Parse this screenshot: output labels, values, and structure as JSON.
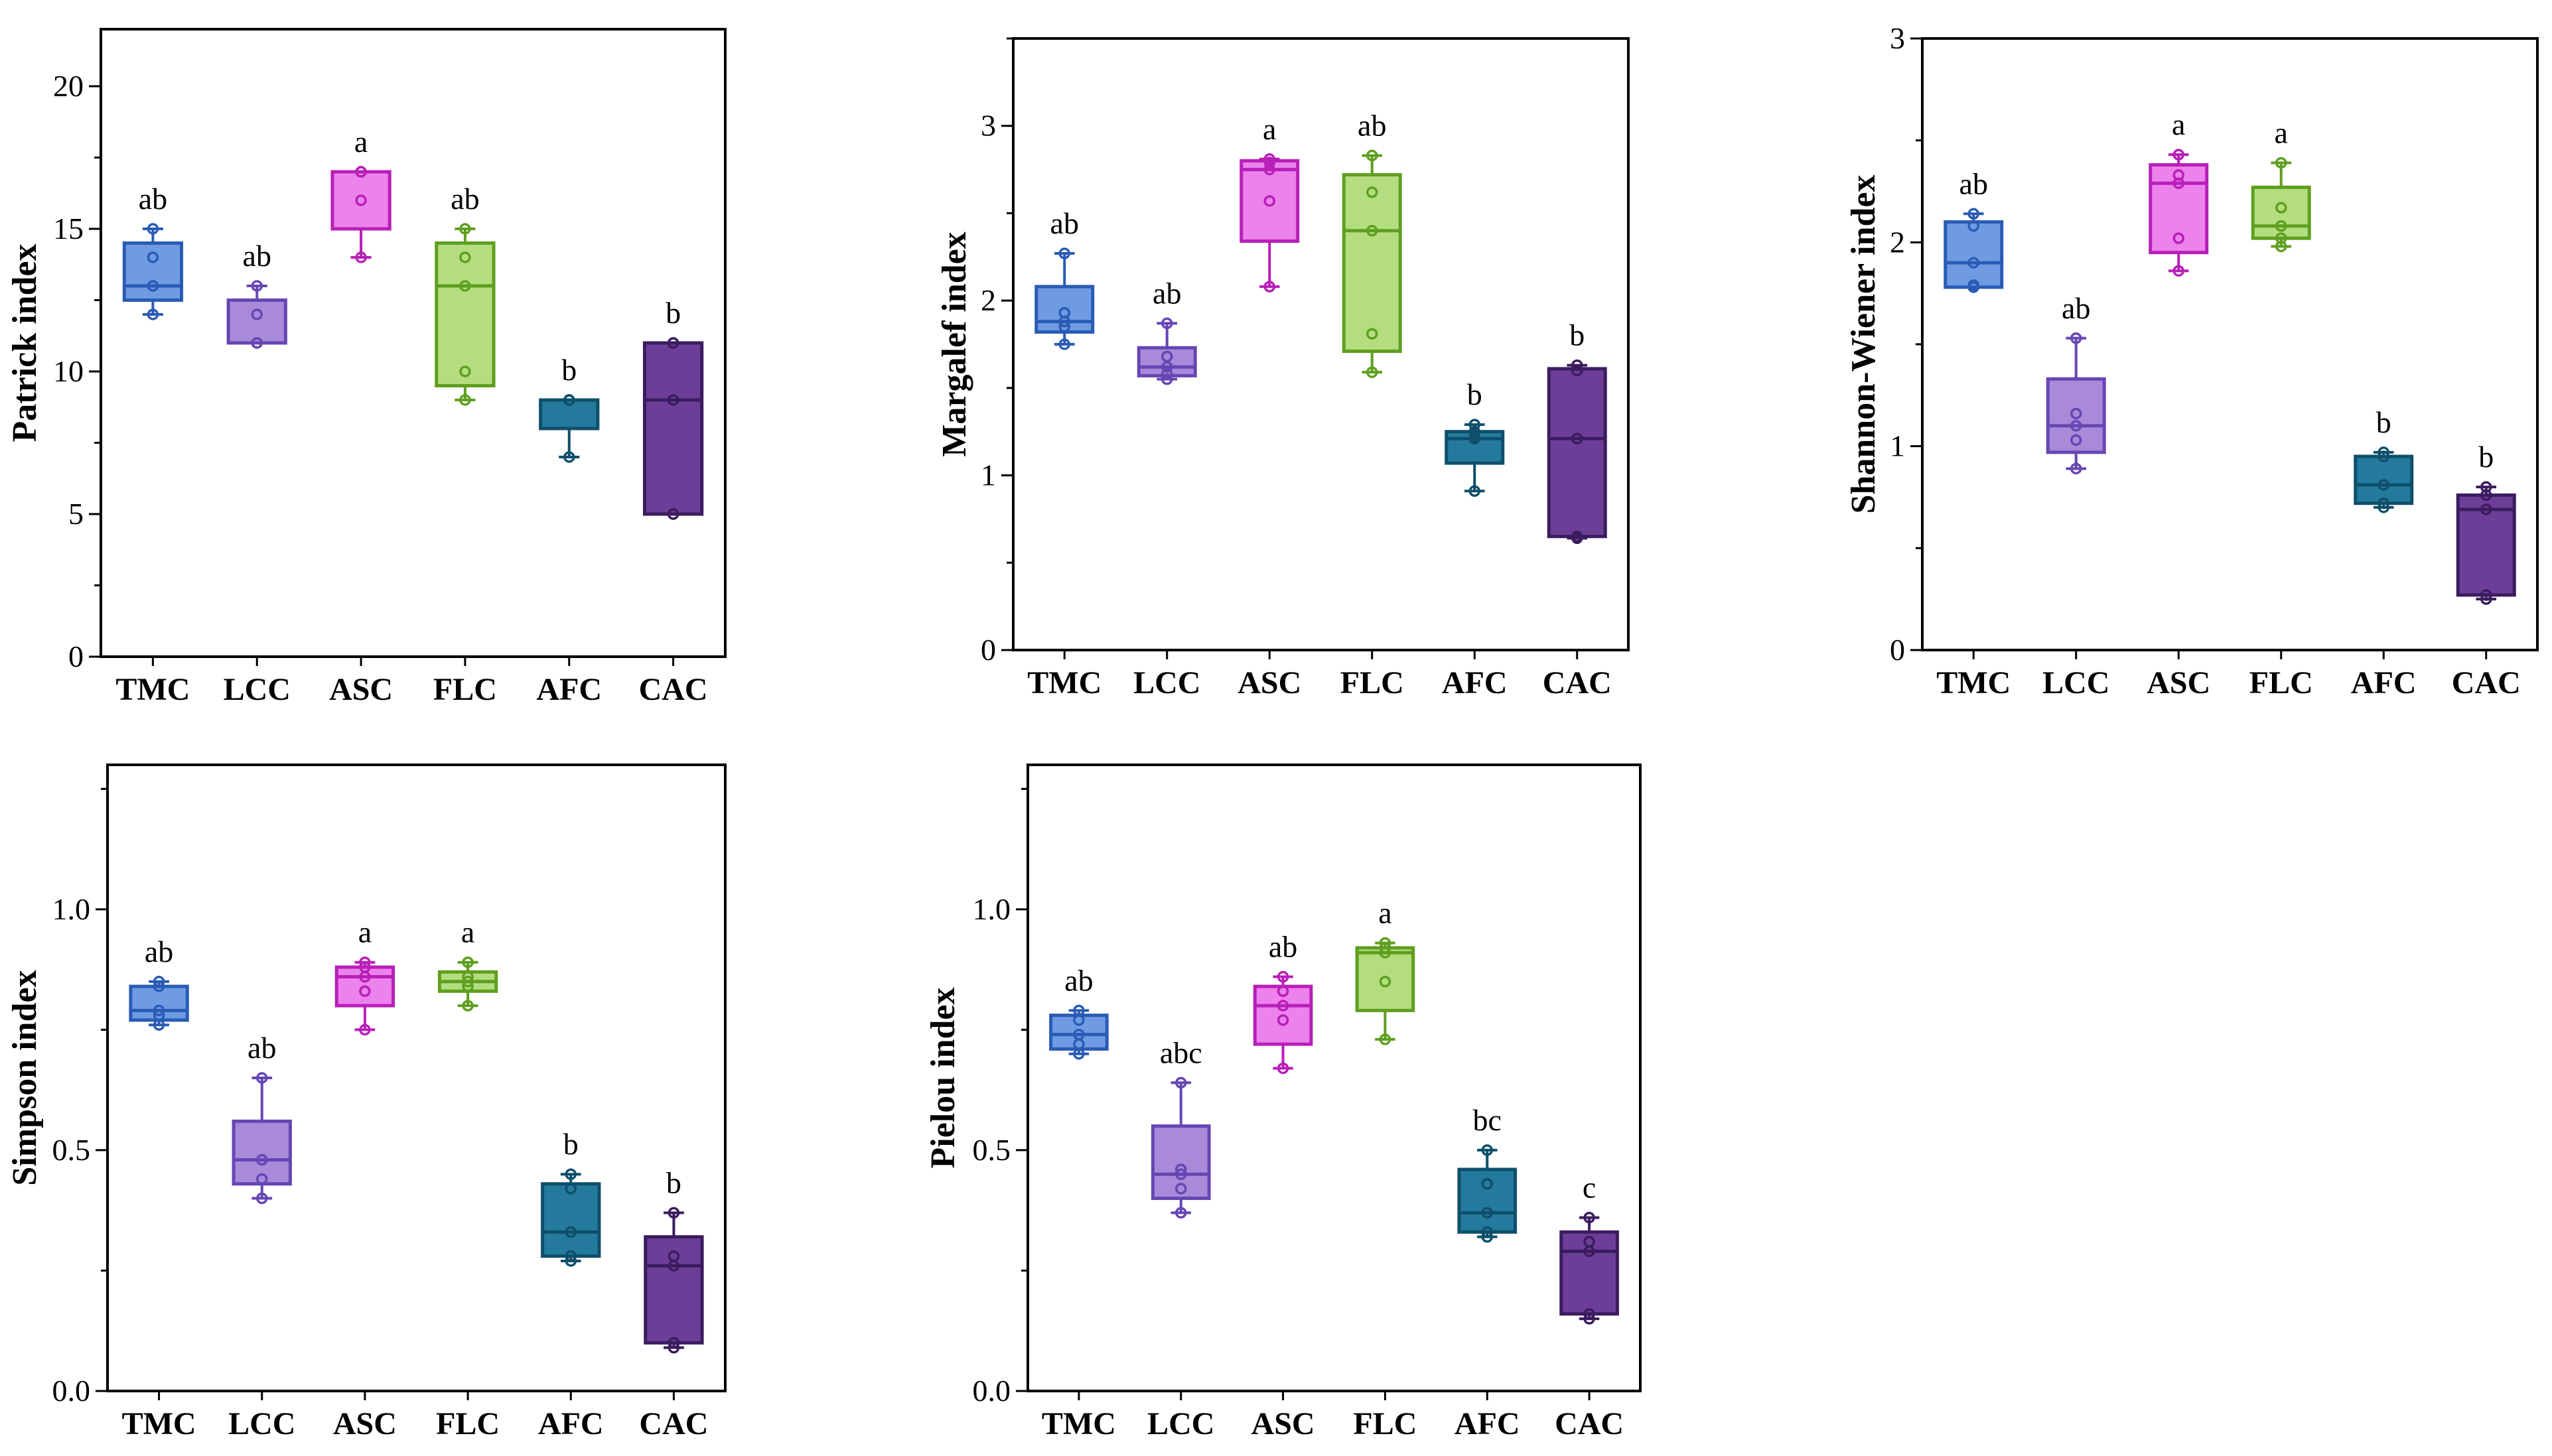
{
  "chart_data": [
    {
      "type": "box",
      "ylabel": "Patrick index",
      "ylim": [
        0,
        22
      ],
      "yticks": [
        0,
        5,
        10,
        15,
        20
      ],
      "categories": [
        "TMC",
        "LCC",
        "ASC",
        "FLC",
        "AFC",
        "CAC"
      ],
      "boxes": [
        {
          "min": 12,
          "q1": 12.5,
          "median": 13,
          "q3": 14.5,
          "max": 15,
          "points": [
            12,
            13,
            13,
            14,
            15
          ],
          "label": "ab"
        },
        {
          "min": 11,
          "q1": 11,
          "median": 11,
          "q3": 12.5,
          "max": 13,
          "points": [
            11,
            11,
            11,
            12,
            13
          ],
          "label": "ab"
        },
        {
          "min": 14,
          "q1": 15,
          "median": 17,
          "q3": 17,
          "max": 17,
          "points": [
            14,
            16,
            17,
            17,
            17
          ],
          "label": "a"
        },
        {
          "min": 9,
          "q1": 9.5,
          "median": 13,
          "q3": 14.5,
          "max": 15,
          "points": [
            9,
            10,
            13,
            14,
            15
          ],
          "label": "ab"
        },
        {
          "min": 7,
          "q1": 8,
          "median": 9,
          "q3": 9,
          "max": 9,
          "points": [
            7,
            9,
            9,
            9,
            9
          ],
          "label": "b"
        },
        {
          "min": 5,
          "q1": 5,
          "median": 9,
          "q3": 11,
          "max": 11,
          "points": [
            5,
            5,
            9,
            11,
            11
          ],
          "label": "b"
        }
      ]
    },
    {
      "type": "box",
      "ylabel": "Margalef index",
      "ylim": [
        0,
        3.5
      ],
      "yticks": [
        0,
        1,
        2,
        3
      ],
      "categories": [
        "TMC",
        "LCC",
        "ASC",
        "FLC",
        "AFC",
        "CAC"
      ],
      "boxes": [
        {
          "min": 1.75,
          "q1": 1.82,
          "median": 1.88,
          "q3": 2.08,
          "max": 2.27,
          "points": [
            1.75,
            1.85,
            1.88,
            1.93,
            2.27
          ],
          "label": "ab"
        },
        {
          "min": 1.55,
          "q1": 1.57,
          "median": 1.62,
          "q3": 1.73,
          "max": 1.87,
          "points": [
            1.55,
            1.58,
            1.62,
            1.68,
            1.87
          ],
          "label": "ab"
        },
        {
          "min": 2.08,
          "q1": 2.34,
          "median": 2.75,
          "q3": 2.8,
          "max": 2.81,
          "points": [
            2.08,
            2.57,
            2.75,
            2.79,
            2.81
          ],
          "label": "a"
        },
        {
          "min": 1.59,
          "q1": 1.71,
          "median": 2.4,
          "q3": 2.72,
          "max": 2.83,
          "points": [
            1.59,
            1.81,
            2.4,
            2.62,
            2.83
          ],
          "label": "ab"
        },
        {
          "min": 0.91,
          "q1": 1.07,
          "median": 1.21,
          "q3": 1.25,
          "max": 1.29,
          "points": [
            0.91,
            1.21,
            1.22,
            1.25,
            1.29
          ],
          "label": "b"
        },
        {
          "min": 0.64,
          "q1": 0.65,
          "median": 1.21,
          "q3": 1.61,
          "max": 1.63,
          "points": [
            0.64,
            0.65,
            1.21,
            1.6,
            1.63
          ],
          "label": "b"
        }
      ]
    },
    {
      "type": "box",
      "ylabel": "Shannon-Wiener index",
      "ylim": [
        0,
        3
      ],
      "yticks": [
        0,
        1,
        2,
        3
      ],
      "categories": [
        "TMC",
        "LCC",
        "ASC",
        "FLC",
        "AFC",
        "CAC"
      ],
      "boxes": [
        {
          "min": 1.78,
          "q1": 1.78,
          "median": 1.9,
          "q3": 2.1,
          "max": 2.14,
          "points": [
            1.78,
            1.79,
            1.9,
            2.08,
            2.14
          ],
          "label": "ab"
        },
        {
          "min": 0.89,
          "q1": 0.97,
          "median": 1.1,
          "q3": 1.33,
          "max": 1.53,
          "points": [
            0.89,
            1.03,
            1.1,
            1.16,
            1.53
          ],
          "label": "ab"
        },
        {
          "min": 1.86,
          "q1": 1.95,
          "median": 2.29,
          "q3": 2.38,
          "max": 2.43,
          "points": [
            1.86,
            2.02,
            2.29,
            2.33,
            2.43
          ],
          "label": "a"
        },
        {
          "min": 1.98,
          "q1": 2.02,
          "median": 2.08,
          "q3": 2.27,
          "max": 2.39,
          "points": [
            1.98,
            2.02,
            2.08,
            2.17,
            2.39
          ],
          "label": "a"
        },
        {
          "min": 0.7,
          "q1": 0.72,
          "median": 0.81,
          "q3": 0.95,
          "max": 0.97,
          "points": [
            0.7,
            0.72,
            0.81,
            0.95,
            0.97
          ],
          "label": "b"
        },
        {
          "min": 0.25,
          "q1": 0.27,
          "median": 0.69,
          "q3": 0.76,
          "max": 0.8,
          "points": [
            0.25,
            0.27,
            0.69,
            0.76,
            0.8
          ],
          "label": "b"
        }
      ]
    },
    {
      "type": "box",
      "ylabel": "Simpson index",
      "ylim": [
        0,
        1.3
      ],
      "yticks": [
        0.0,
        0.5,
        1.0
      ],
      "categories": [
        "TMC",
        "LCC",
        "ASC",
        "FLC",
        "AFC",
        "CAC"
      ],
      "boxes": [
        {
          "min": 0.76,
          "q1": 0.77,
          "median": 0.79,
          "q3": 0.84,
          "max": 0.85,
          "points": [
            0.76,
            0.78,
            0.79,
            0.84,
            0.85
          ],
          "label": "ab"
        },
        {
          "min": 0.4,
          "q1": 0.43,
          "median": 0.48,
          "q3": 0.56,
          "max": 0.65,
          "points": [
            0.4,
            0.44,
            0.48,
            0.48,
            0.65
          ],
          "label": "ab"
        },
        {
          "min": 0.75,
          "q1": 0.8,
          "median": 0.86,
          "q3": 0.88,
          "max": 0.89,
          "points": [
            0.75,
            0.83,
            0.86,
            0.88,
            0.89
          ],
          "label": "a"
        },
        {
          "min": 0.8,
          "q1": 0.83,
          "median": 0.85,
          "q3": 0.87,
          "max": 0.89,
          "points": [
            0.8,
            0.84,
            0.85,
            0.86,
            0.89
          ],
          "label": "a"
        },
        {
          "min": 0.27,
          "q1": 0.28,
          "median": 0.33,
          "q3": 0.43,
          "max": 0.45,
          "points": [
            0.27,
            0.28,
            0.33,
            0.42,
            0.45
          ],
          "label": "b"
        },
        {
          "min": 0.09,
          "q1": 0.1,
          "median": 0.26,
          "q3": 0.32,
          "max": 0.37,
          "points": [
            0.09,
            0.1,
            0.26,
            0.28,
            0.37
          ],
          "label": "b"
        }
      ]
    },
    {
      "type": "box",
      "ylabel": "Pielou index",
      "ylim": [
        0,
        1.3
      ],
      "yticks": [
        0.0,
        0.5,
        1.0
      ],
      "categories": [
        "TMC",
        "LCC",
        "ASC",
        "FLC",
        "AFC",
        "CAC"
      ],
      "boxes": [
        {
          "min": 0.7,
          "q1": 0.71,
          "median": 0.74,
          "q3": 0.78,
          "max": 0.79,
          "points": [
            0.7,
            0.72,
            0.74,
            0.77,
            0.79
          ],
          "label": "ab"
        },
        {
          "min": 0.37,
          "q1": 0.4,
          "median": 0.45,
          "q3": 0.55,
          "max": 0.64,
          "points": [
            0.37,
            0.42,
            0.45,
            0.46,
            0.64
          ],
          "label": "abc"
        },
        {
          "min": 0.67,
          "q1": 0.72,
          "median": 0.8,
          "q3": 0.84,
          "max": 0.86,
          "points": [
            0.67,
            0.77,
            0.8,
            0.83,
            0.86
          ],
          "label": "ab"
        },
        {
          "min": 0.73,
          "q1": 0.79,
          "median": 0.91,
          "q3": 0.92,
          "max": 0.93,
          "points": [
            0.73,
            0.85,
            0.91,
            0.92,
            0.93
          ],
          "label": "a"
        },
        {
          "min": 0.32,
          "q1": 0.33,
          "median": 0.37,
          "q3": 0.46,
          "max": 0.5,
          "points": [
            0.32,
            0.33,
            0.37,
            0.43,
            0.5
          ],
          "label": "bc"
        },
        {
          "min": 0.15,
          "q1": 0.16,
          "median": 0.29,
          "q3": 0.33,
          "max": 0.36,
          "points": [
            0.15,
            0.16,
            0.29,
            0.31,
            0.36
          ],
          "label": "c"
        }
      ]
    }
  ],
  "colors": {
    "TMC": {
      "fill": "#6f9be3",
      "stroke": "#2a5bb5"
    },
    "LCC": {
      "fill": "#a98ad9",
      "stroke": "#6646b3"
    },
    "ASC": {
      "fill": "#ec82ec",
      "stroke": "#b81fb8"
    },
    "FLC": {
      "fill": "#b4dd80",
      "stroke": "#5e9f1f"
    },
    "AFC": {
      "fill": "#237a9c",
      "stroke": "#0f4f6b"
    },
    "CAC": {
      "fill": "#6d3e98",
      "stroke": "#3b1c5f"
    }
  }
}
